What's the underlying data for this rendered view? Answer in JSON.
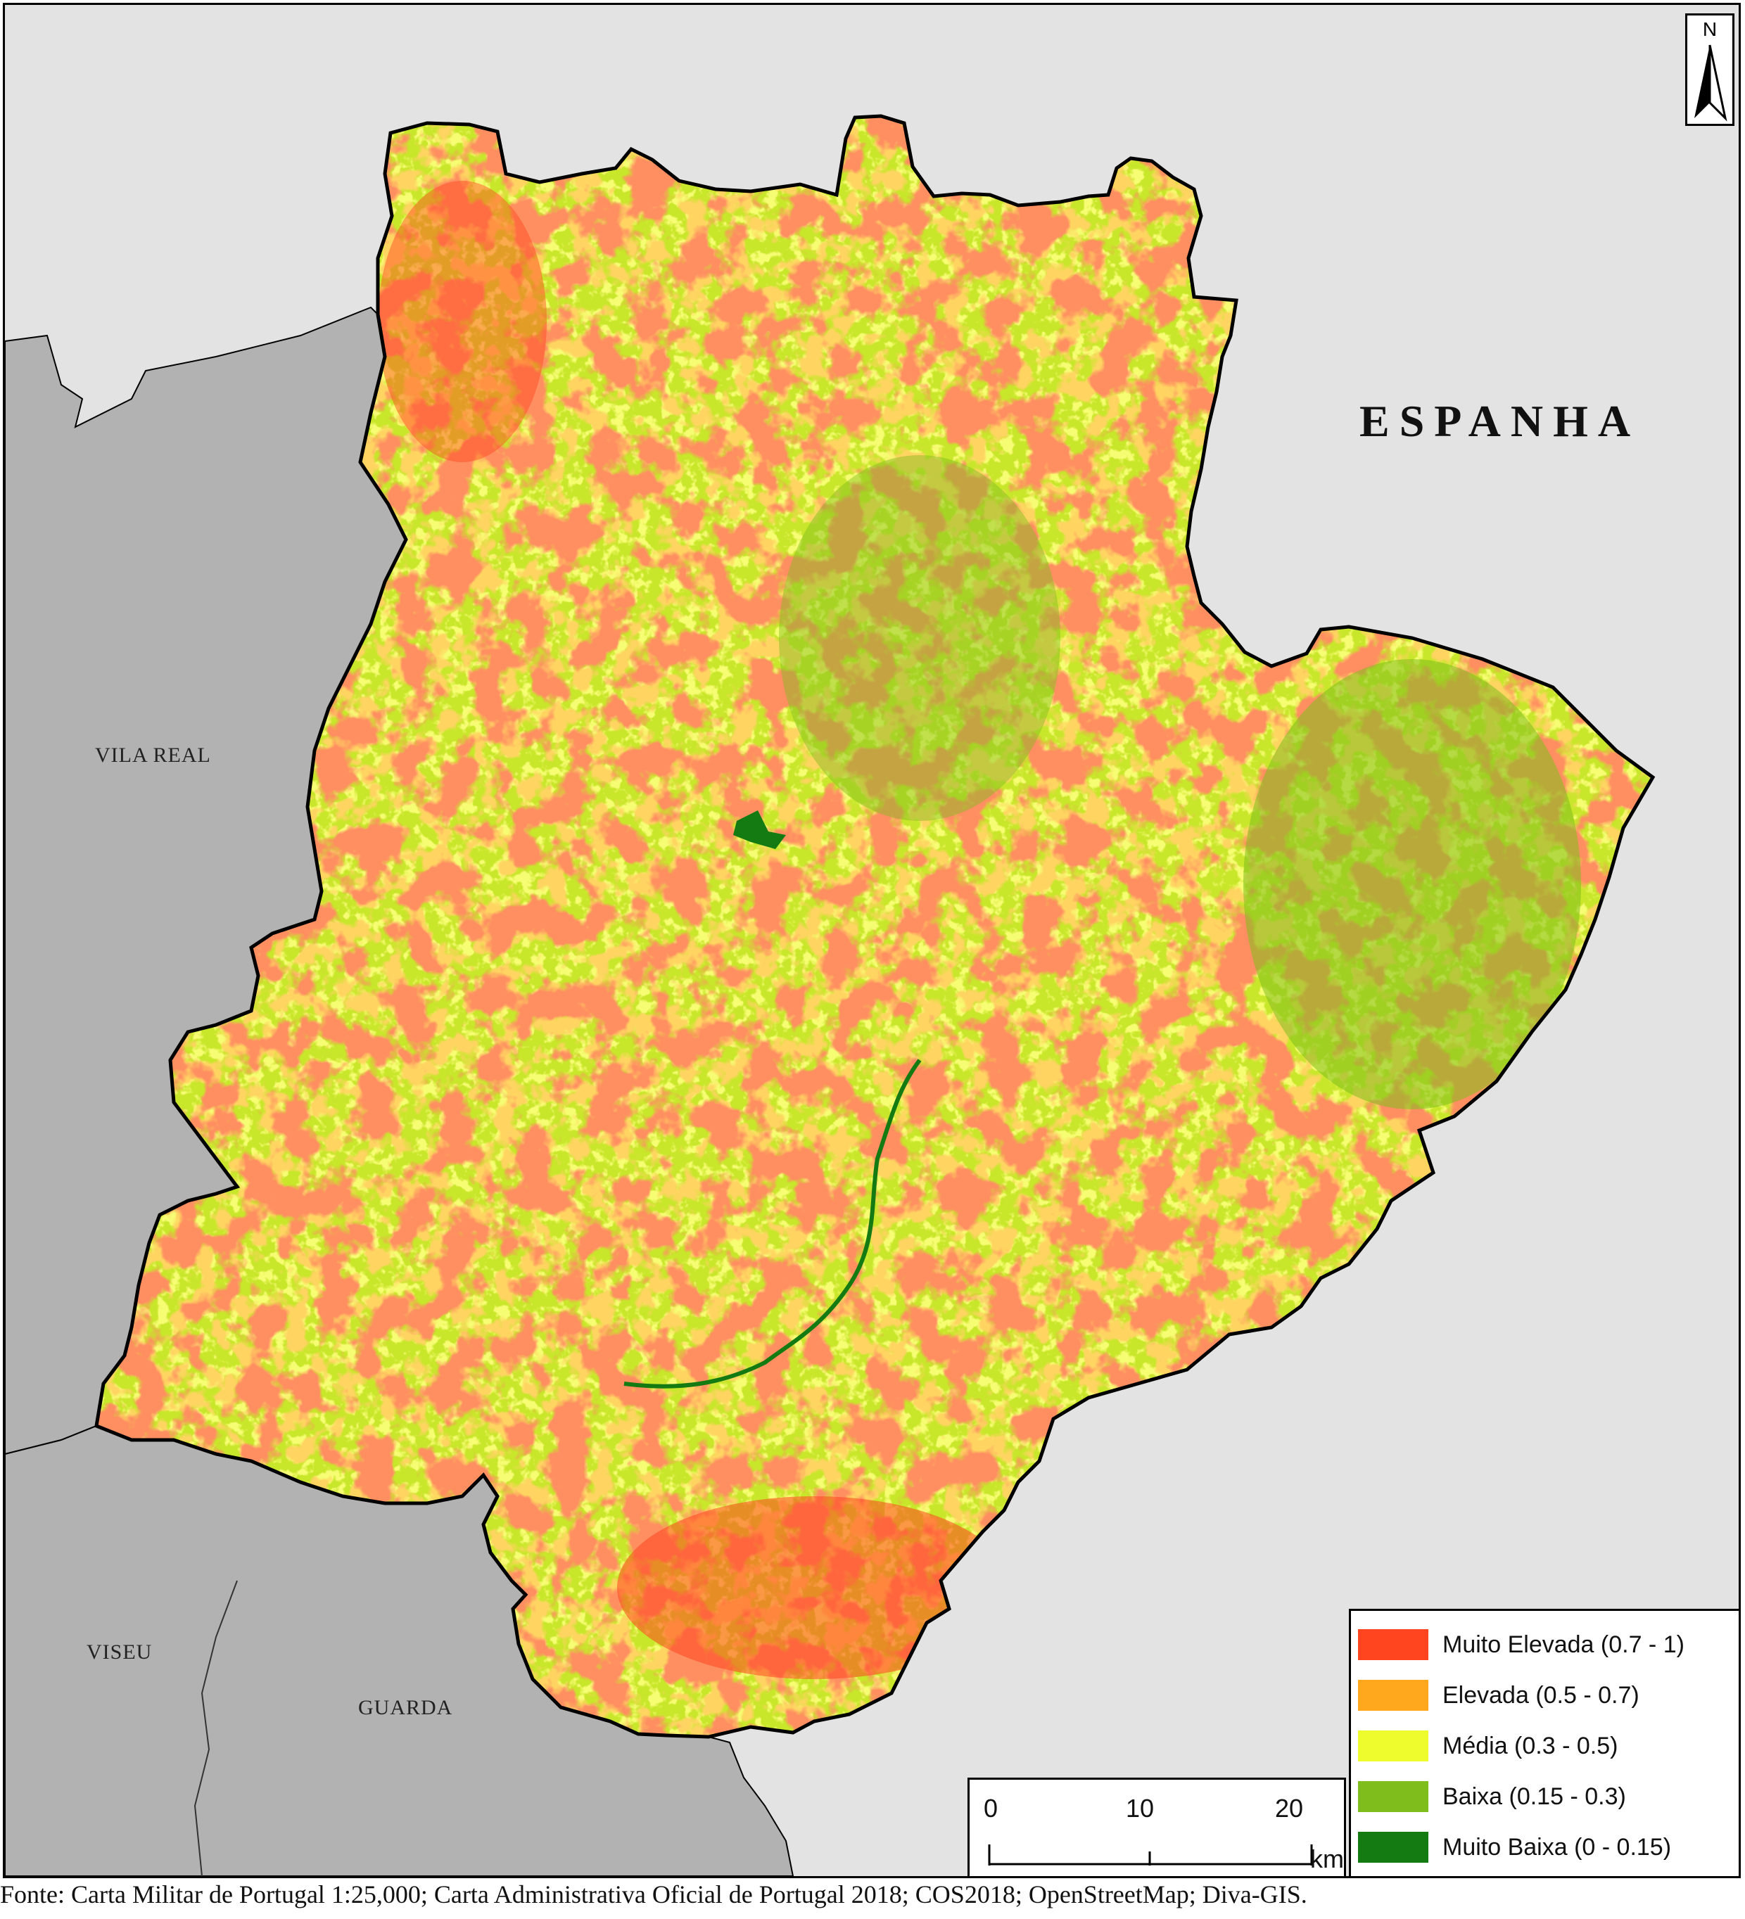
{
  "labels": {
    "country": "ESPANHA",
    "vila_real": "VILA REAL",
    "viseu": "VISEU",
    "guarda": "GUARDA",
    "north": "N"
  },
  "legend": {
    "items": [
      {
        "label": "Muito Elevada (0.7 - 1)",
        "color": "#ff4520"
      },
      {
        "label": "Elevada (0.5 - 0.7)",
        "color": "#ffa81e"
      },
      {
        "label": "Média (0.3 - 0.5)",
        "color": "#eefb2c"
      },
      {
        "label": "Baixa (0.15 - 0.3)",
        "color": "#7fbd1c"
      },
      {
        "label": "Muito Baixa (0 - 0.15)",
        "color": "#147a12"
      }
    ]
  },
  "scalebar": {
    "ticks": [
      "0",
      "10",
      "20"
    ],
    "unit": "km"
  },
  "colors": {
    "spain": "#e3e3e3",
    "portugal_neighbors": "#b2b2b2",
    "border": "#000000",
    "water": "#147a12"
  },
  "source": "Fonte: Carta Militar de Portugal  1:25,000; Carta Administrativa Oficial de Portugal 2018; COS2018; OpenStreetMap; Diva-GIS."
}
